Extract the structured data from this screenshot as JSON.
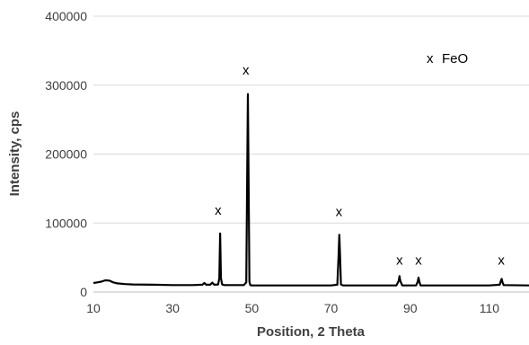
{
  "chart_data": {
    "type": "line",
    "title": "",
    "xlabel": "Position, 2 Theta",
    "ylabel": "Intensity, cps",
    "xlim": [
      10,
      120
    ],
    "ylim": [
      0,
      400000
    ],
    "x_ticks": [
      10,
      30,
      50,
      70,
      90,
      110
    ],
    "y_ticks": [
      0,
      100000,
      200000,
      300000,
      400000
    ],
    "grid": "horizontal",
    "line_color": "#000000",
    "series": [
      {
        "x": [
          10,
          11,
          12,
          13,
          14,
          15,
          16,
          18,
          20,
          25,
          30,
          35,
          37.5,
          38,
          38.5,
          39.5,
          40,
          40.5,
          41.5,
          41.8,
          42.0,
          42.2,
          42.5,
          43,
          45,
          48,
          48.6,
          48.8,
          49.0,
          49.2,
          49.4,
          49.6,
          50,
          55,
          60,
          65,
          70,
          71.6,
          71.9,
          72.1,
          72.3,
          72.5,
          73,
          80,
          86.5,
          87.1,
          87.3,
          87.5,
          88,
          91.5,
          91.9,
          92.1,
          92.3,
          92.6,
          100,
          110,
          112.6,
          112.9,
          113.1,
          113.3,
          113.6,
          120
        ],
        "y": [
          13000,
          14000,
          15000,
          17000,
          16500,
          14000,
          12500,
          11500,
          11000,
          10500,
          10000,
          10000,
          10500,
          13000,
          10500,
          10500,
          13500,
          10500,
          11000,
          20000,
          85000,
          20000,
          11000,
          10000,
          10000,
          10000,
          14000,
          150000,
          287000,
          160000,
          15000,
          10000,
          9500,
          9500,
          9500,
          9500,
          9500,
          10500,
          50000,
          83000,
          50000,
          11000,
          9500,
          9500,
          9500,
          16000,
          23000,
          16000,
          9500,
          9500,
          15000,
          21000,
          15000,
          9500,
          9500,
          9500,
          10500,
          16000,
          19000,
          14000,
          10000,
          9500
        ]
      }
    ],
    "annotations": [
      {
        "text": "x",
        "x": 41.5,
        "y": 112000
      },
      {
        "text": "x",
        "x": 48.5,
        "y": 315000
      },
      {
        "text": "x",
        "x": 72.0,
        "y": 110000
      },
      {
        "text": "x",
        "x": 87.3,
        "y": 40000
      },
      {
        "text": "x",
        "x": 92.1,
        "y": 40000
      },
      {
        "text": "x",
        "x": 113.0,
        "y": 40000
      }
    ],
    "legend": {
      "marker": "x",
      "label": "FeO",
      "position": "top-right"
    }
  }
}
